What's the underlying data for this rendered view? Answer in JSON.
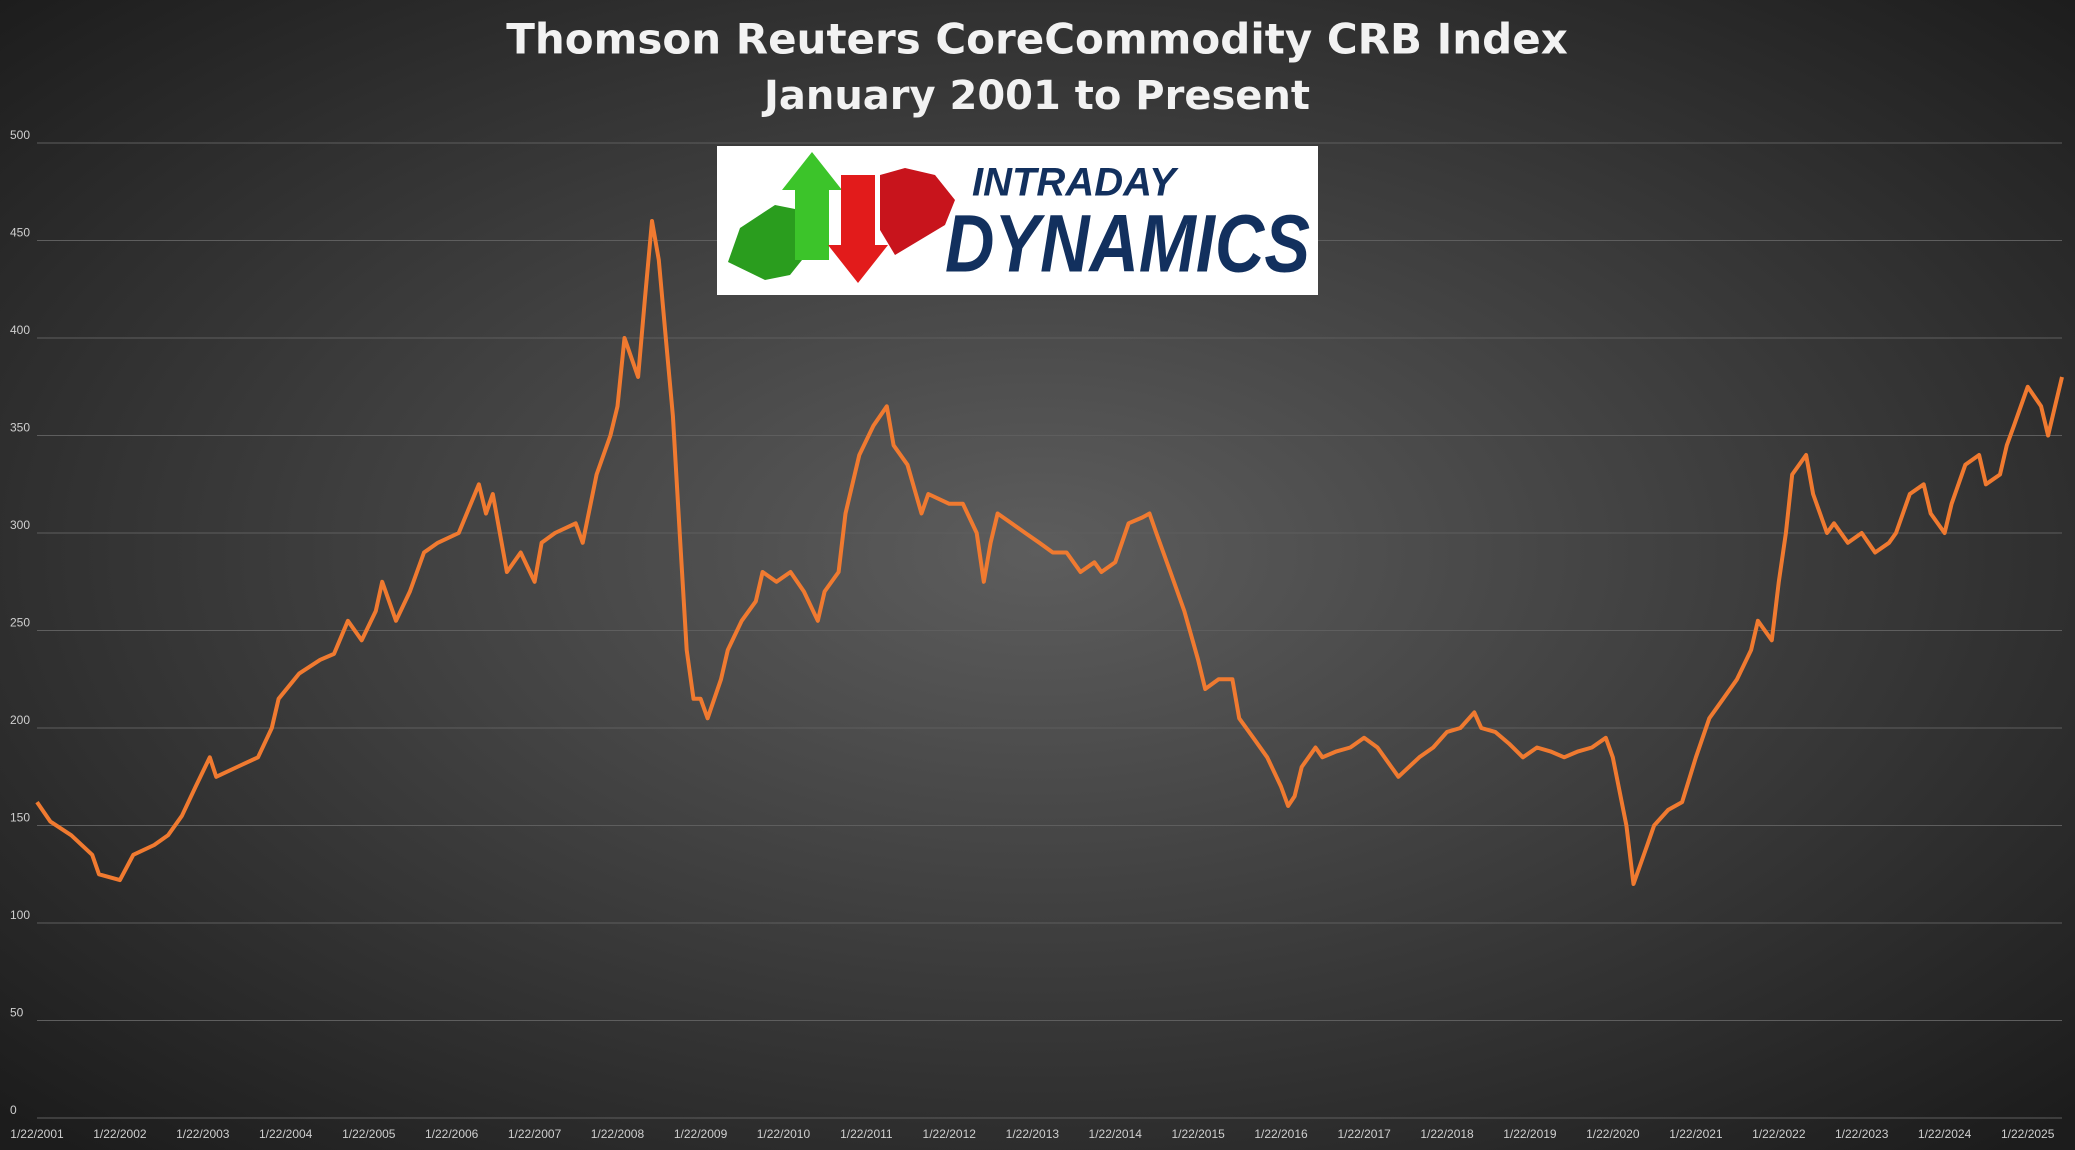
{
  "chart_data": {
    "type": "line",
    "title": "Thomson Reuters CoreCommodity CRB Index",
    "subtitle": "January 2001 to Present",
    "color": "#f07a30",
    "grid": true,
    "xlim": [
      "1/22/2001",
      "6/22/2025"
    ],
    "xticks": [
      "1/22/2001",
      "1/22/2002",
      "1/22/2003",
      "1/22/2004",
      "1/22/2005",
      "1/22/2006",
      "1/22/2007",
      "1/22/2008",
      "1/22/2009",
      "1/22/2010",
      "1/22/2011",
      "1/22/2012",
      "1/22/2013",
      "1/22/2014",
      "1/22/2015",
      "1/22/2016",
      "1/22/2017",
      "1/22/2018",
      "1/22/2019",
      "1/22/2020",
      "1/22/2021",
      "1/22/2022",
      "1/22/2023",
      "1/22/2024",
      "1/22/2025"
    ],
    "ylim": [
      0,
      500
    ],
    "yticks": [
      0,
      50,
      100,
      150,
      200,
      250,
      300,
      350,
      400,
      450,
      500
    ],
    "x": [
      "1/22/2001",
      "3/22/2001",
      "6/22/2001",
      "9/22/2001",
      "10/22/2001",
      "1/22/2002",
      "3/22/2002",
      "6/22/2002",
      "8/22/2002",
      "10/22/2002",
      "12/22/2002",
      "2/22/2003",
      "3/22/2003",
      "6/22/2003",
      "9/22/2003",
      "11/22/2003",
      "12/22/2003",
      "3/22/2004",
      "6/22/2004",
      "8/22/2004",
      "10/22/2004",
      "12/22/2004",
      "2/22/2005",
      "3/22/2005",
      "5/22/2005",
      "7/22/2005",
      "9/22/2005",
      "11/22/2005",
      "2/22/2006",
      "5/22/2006",
      "6/22/2006",
      "7/22/2006",
      "9/22/2006",
      "11/22/2006",
      "1/22/2007",
      "2/22/2007",
      "4/22/2007",
      "7/22/2007",
      "8/22/2007",
      "10/22/2007",
      "12/22/2007",
      "1/22/2008",
      "2/22/2008",
      "4/22/2008",
      "5/22/2008",
      "6/22/2008",
      "7/22/2008",
      "8/22/2008",
      "9/22/2008",
      "10/22/2008",
      "11/22/2008",
      "12/22/2008",
      "1/22/2009",
      "2/22/2009",
      "4/22/2009",
      "5/22/2009",
      "7/22/2009",
      "9/22/2009",
      "10/22/2009",
      "12/22/2009",
      "2/22/2010",
      "4/22/2010",
      "6/22/2010",
      "7/22/2010",
      "9/22/2010",
      "10/22/2010",
      "12/22/2010",
      "2/22/2011",
      "4/22/2011",
      "5/22/2011",
      "7/22/2011",
      "9/22/2011",
      "10/22/2011",
      "1/22/2012",
      "3/22/2012",
      "5/22/2012",
      "6/22/2012",
      "7/22/2012",
      "8/22/2012",
      "10/22/2012",
      "12/22/2012",
      "2/22/2013",
      "4/22/2013",
      "6/22/2013",
      "8/22/2013",
      "10/22/2013",
      "11/22/2013",
      "1/22/2014",
      "3/22/2014",
      "5/22/2014",
      "6/22/2014",
      "7/22/2014",
      "9/22/2014",
      "11/22/2014",
      "1/22/2015",
      "2/22/2015",
      "4/22/2015",
      "6/22/2015",
      "7/22/2015",
      "9/22/2015",
      "11/22/2015",
      "1/22/2016",
      "2/22/2016",
      "3/22/2016",
      "4/22/2016",
      "6/22/2016",
      "7/22/2016",
      "9/22/2016",
      "11/22/2016",
      "1/22/2017",
      "3/22/2017",
      "5/22/2017",
      "6/22/2017",
      "9/22/2017",
      "11/22/2017",
      "1/22/2018",
      "3/22/2018",
      "5/22/2018",
      "6/22/2018",
      "8/22/2018",
      "10/22/2018",
      "12/22/2018",
      "2/22/2019",
      "4/22/2019",
      "6/22/2019",
      "8/22/2019",
      "10/22/2019",
      "12/22/2019",
      "1/22/2020",
      "3/22/2020",
      "4/22/2020",
      "6/22/2020",
      "7/22/2020",
      "9/22/2020",
      "11/22/2020",
      "1/22/2021",
      "3/22/2021",
      "5/22/2021",
      "7/22/2021",
      "9/22/2021",
      "10/22/2021",
      "12/22/2021",
      "1/22/2022",
      "2/22/2022",
      "3/22/2022",
      "5/22/2022",
      "6/22/2022",
      "8/22/2022",
      "9/22/2022",
      "11/22/2022",
      "1/22/2023",
      "3/22/2023",
      "5/22/2023",
      "6/22/2023",
      "8/22/2023",
      "10/22/2023",
      "11/22/2023",
      "1/22/2024",
      "2/22/2024",
      "4/22/2024",
      "6/22/2024",
      "7/22/2024",
      "9/22/2024",
      "10/22/2024",
      "11/22/2024",
      "1/22/2025",
      "3/22/2025",
      "4/22/2025",
      "5/22/2025",
      "6/22/2025"
    ],
    "values": [
      162,
      152,
      145,
      135,
      125,
      122,
      135,
      140,
      145,
      155,
      170,
      185,
      175,
      180,
      185,
      200,
      215,
      228,
      235,
      238,
      255,
      245,
      260,
      275,
      255,
      270,
      290,
      295,
      300,
      325,
      310,
      320,
      280,
      290,
      275,
      295,
      300,
      305,
      295,
      330,
      350,
      365,
      400,
      380,
      420,
      460,
      440,
      400,
      360,
      300,
      240,
      215,
      215,
      205,
      225,
      240,
      255,
      265,
      280,
      275,
      280,
      270,
      255,
      270,
      280,
      310,
      340,
      355,
      365,
      345,
      335,
      310,
      320,
      315,
      315,
      300,
      275,
      295,
      310,
      305,
      300,
      295,
      290,
      290,
      280,
      285,
      280,
      285,
      305,
      308,
      310,
      300,
      280,
      260,
      235,
      220,
      225,
      225,
      205,
      195,
      185,
      170,
      160,
      165,
      180,
      190,
      185,
      188,
      190,
      195,
      190,
      180,
      175,
      185,
      190,
      198,
      200,
      208,
      200,
      198,
      192,
      185,
      190,
      188,
      185,
      188,
      190,
      195,
      185,
      150,
      120,
      140,
      150,
      158,
      162,
      185,
      205,
      215,
      225,
      240,
      255,
      245,
      275,
      300,
      330,
      340,
      320,
      300,
      305,
      295,
      300,
      290,
      295,
      300,
      320,
      325,
      310,
      300,
      315,
      335,
      340,
      325,
      330,
      345,
      355,
      375,
      365,
      350,
      365,
      380
    ]
  },
  "logo": {
    "line1": "INTRADAY",
    "line2": "DYNAMICS"
  }
}
